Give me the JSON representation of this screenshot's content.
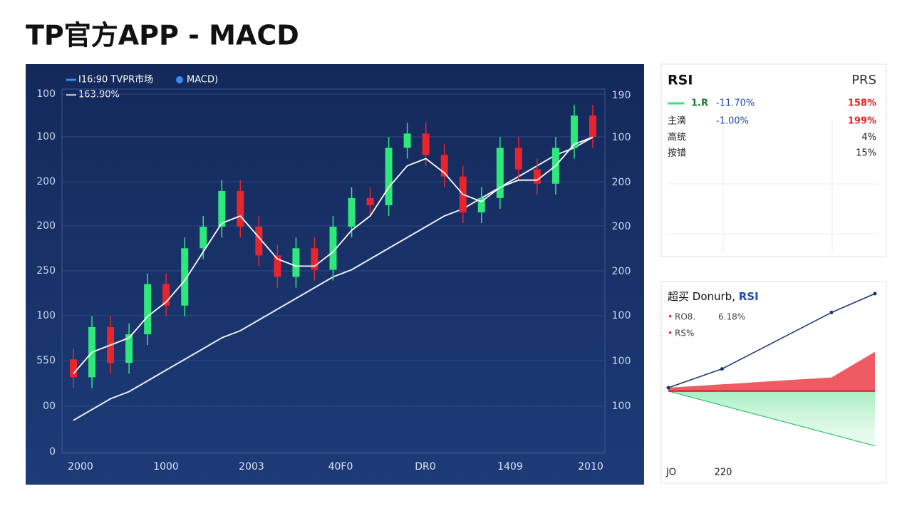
{
  "title": "TP官方APP - MACD",
  "main": {
    "legend": [
      "I16:90  TVPR市场",
      "MACD)",
      "163.90%"
    ],
    "y_labels_left": [
      "100",
      "100",
      "200",
      "200",
      "250",
      "100",
      "550",
      "00",
      "0"
    ],
    "y_labels_right": [
      "190",
      "100",
      "200",
      "200",
      "200",
      "100",
      "100",
      "100"
    ],
    "x_labels": [
      "2000",
      "1000",
      "2003",
      "40F0",
      "DR0",
      "1409",
      "2010"
    ],
    "ylim": [
      0,
      100
    ],
    "candles": {
      "open": [
        26,
        21,
        35,
        25,
        33,
        47,
        41,
        57,
        63,
        73,
        63,
        55,
        49,
        57,
        51,
        63,
        71,
        69,
        85,
        89,
        83,
        77,
        67,
        71,
        85,
        79,
        75,
        85,
        94
      ],
      "high": [
        29,
        38,
        38,
        36,
        50,
        50,
        60,
        66,
        76,
        76,
        66,
        58,
        60,
        60,
        66,
        74,
        74,
        88,
        92,
        92,
        86,
        80,
        74,
        88,
        88,
        82,
        88,
        97,
        97
      ],
      "low": [
        18,
        18,
        22,
        22,
        30,
        38,
        38,
        54,
        60,
        60,
        52,
        46,
        46,
        48,
        48,
        60,
        66,
        66,
        82,
        80,
        74,
        64,
        64,
        68,
        76,
        72,
        72,
        82,
        85
      ],
      "close": [
        21,
        35,
        25,
        33,
        47,
        41,
        57,
        63,
        73,
        63,
        55,
        49,
        57,
        51,
        63,
        71,
        69,
        85,
        89,
        83,
        77,
        67,
        71,
        85,
        79,
        75,
        85,
        94,
        88
      ]
    },
    "ma_fast": [
      22,
      28,
      30,
      32,
      38,
      42,
      48,
      56,
      64,
      66,
      60,
      54,
      52,
      52,
      56,
      62,
      66,
      74,
      80,
      82,
      78,
      72,
      70,
      74,
      76,
      76,
      80,
      86,
      88
    ],
    "ma_slow": [
      9,
      12,
      15,
      17,
      20,
      23,
      26,
      29,
      32,
      34,
      37,
      40,
      43,
      46,
      49,
      51,
      54,
      57,
      60,
      63,
      66,
      68,
      71,
      74,
      77,
      80,
      83,
      85,
      88
    ]
  },
  "rsi_panel": {
    "title": "RSI",
    "right_title": "PRS",
    "rows": [
      [
        "1.R",
        "-11.70%",
        "158%"
      ],
      [
        "主滴",
        "-1.00%",
        "199%"
      ],
      [
        "高统",
        "",
        "4%"
      ],
      [
        "按错",
        "",
        "15%"
      ]
    ]
  },
  "trend_panel": {
    "title": "超买 Donurb,",
    "title_accent": "RSI",
    "legend": [
      "RO8.",
      "6.18%",
      "RS%"
    ],
    "x_labels": [
      "JO",
      "220"
    ],
    "ylim": [
      0,
      100
    ],
    "x": [
      0,
      26,
      79,
      100
    ],
    "xlim": [
      0,
      100
    ],
    "line": [
      40,
      51,
      84,
      95
    ],
    "red_x": [
      0,
      79,
      100
    ],
    "red": [
      40,
      46,
      61
    ],
    "red_base": 38,
    "green_x": [
      0,
      100
    ],
    "green": [
      38,
      6
    ]
  }
}
